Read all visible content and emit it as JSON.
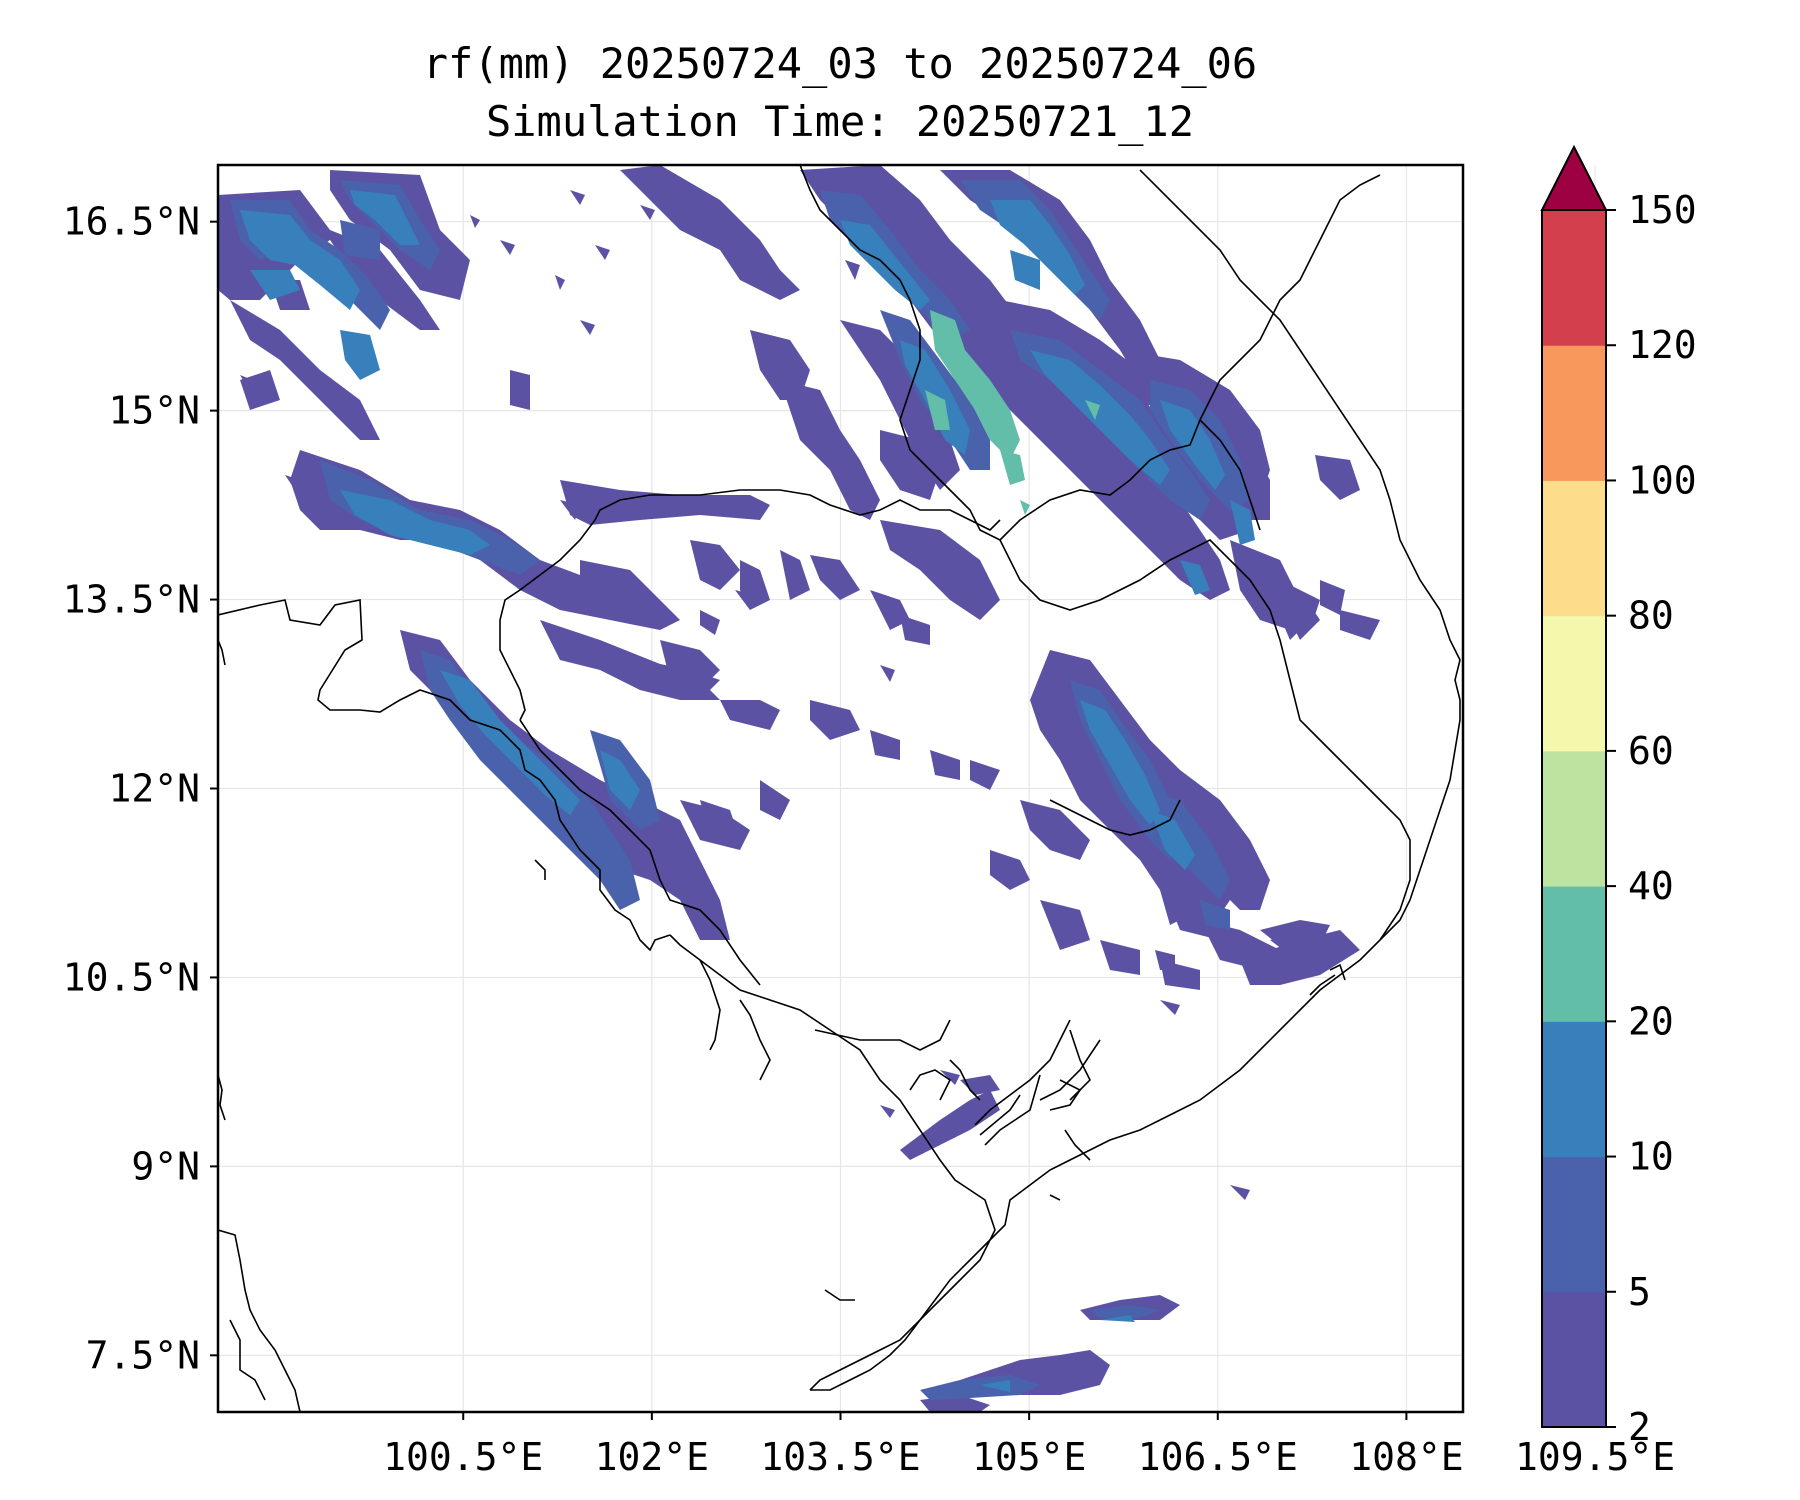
{
  "title": {
    "line1": "rf(mm) 20250724_03 to 20250724_06",
    "line2": "Simulation Time: 20250721_12"
  },
  "map": {
    "x_ticks": [
      "100.5°E",
      "102°E",
      "103.5°E",
      "105°E",
      "106.5°E",
      "108°E",
      "109.5°E"
    ],
    "y_ticks": [
      "16.5°N",
      "15°N",
      "13.5°N",
      "12°N",
      "10.5°N",
      "9°N",
      "7.5°N"
    ],
    "x_tick_values": [
      100.5,
      102,
      103.5,
      105,
      106.5,
      108,
      109.5
    ],
    "y_tick_values": [
      16.5,
      15,
      13.5,
      12,
      10.5,
      9,
      7.5
    ],
    "lon_range": [
      98.55,
      108.45
    ],
    "lat_range": [
      7.05,
      16.95
    ],
    "grid": true,
    "coastline_color": "#000000",
    "variable": "rainfall accumulation (mm)"
  },
  "colorbar": {
    "labels": [
      "2",
      "5",
      "10",
      "20",
      "40",
      "60",
      "80",
      "100",
      "120",
      "150"
    ],
    "levels": [
      2,
      5,
      10,
      20,
      40,
      60,
      80,
      100,
      120,
      150
    ],
    "colors": [
      "#5b52a3",
      "#4a62ac",
      "#3880bb",
      "#62bda9",
      "#bde3a1",
      "#f3f8ad",
      "#fbdd8c",
      "#f9985c",
      "#d43f4e"
    ],
    "extend_color": "#9e0142",
    "extend": "max"
  }
}
